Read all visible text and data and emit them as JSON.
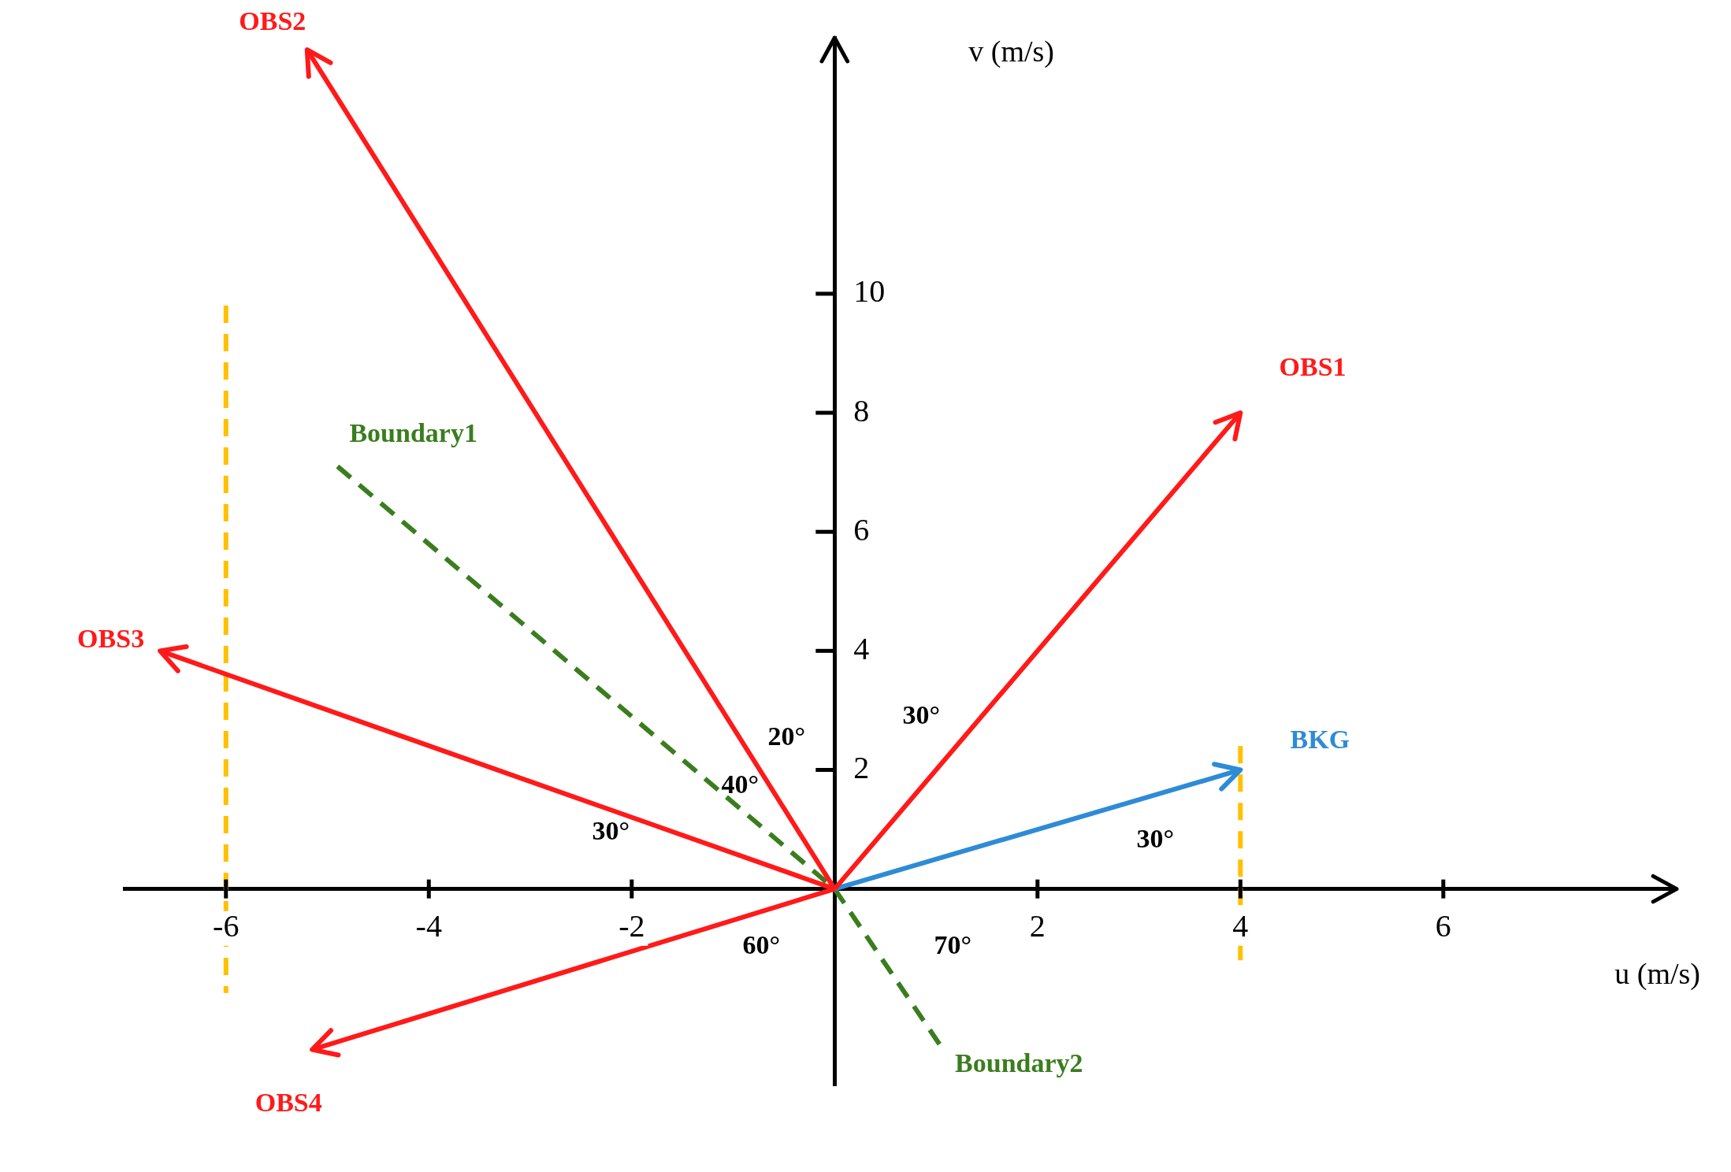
{
  "chart_data": {
    "type": "line",
    "xlabel": "u (m/s)",
    "ylabel": "v (m/s)",
    "xlim": [
      -7,
      8.3
    ],
    "ylim": [
      -3.3,
      14.3
    ],
    "xticks": [
      -6,
      -4,
      -2,
      2,
      4,
      6
    ],
    "yticks": [
      2,
      4,
      6,
      8,
      10
    ],
    "grid": false,
    "legend": false,
    "marker": "none",
    "series": [
      {
        "name": "OBS1",
        "color": "#ff1a1a",
        "x": [
          0,
          4
        ],
        "values": [
          0,
          8
        ],
        "line_style": "solid"
      },
      {
        "name": "OBS2",
        "color": "#ff1a1a",
        "x": [
          0,
          -5.2
        ],
        "values": [
          0,
          14.1
        ],
        "line_style": "solid"
      },
      {
        "name": "OBS3",
        "color": "#ff1a1a",
        "x": [
          0,
          -6.65
        ],
        "values": [
          0,
          4
        ],
        "line_style": "solid"
      },
      {
        "name": "OBS4",
        "color": "#ff1a1a",
        "x": [
          0,
          -5.15
        ],
        "values": [
          0,
          -2.7
        ],
        "line_style": "solid"
      },
      {
        "name": "BKG",
        "color": "#2e8bd6",
        "x": [
          0,
          4
        ],
        "values": [
          0,
          2
        ],
        "line_style": "solid"
      },
      {
        "color": "#3a7d1e",
        "x": [
          -4.9,
          0,
          1.07
        ],
        "values": [
          7.1,
          0,
          -2.7
        ],
        "line_style": "dashed"
      },
      {
        "color": "#ffc000",
        "x": [
          -6,
          -6
        ],
        "values": [
          9.8,
          -1.75
        ],
        "line_style": "dashed"
      },
      {
        "color": "#ffc000",
        "x": [
          4,
          4
        ],
        "values": [
          2.4,
          -1.2
        ],
        "line_style": "dashed"
      }
    ],
    "annotations": [
      {
        "text": "Boundary1",
        "x": -4.9,
        "y": 7.1
      },
      {
        "text": "Boundary2",
        "x": 1.07,
        "y": -2.7
      },
      "30°",
      "20°",
      "40°",
      "30°",
      "30°",
      "60°",
      "70°"
    ]
  }
}
